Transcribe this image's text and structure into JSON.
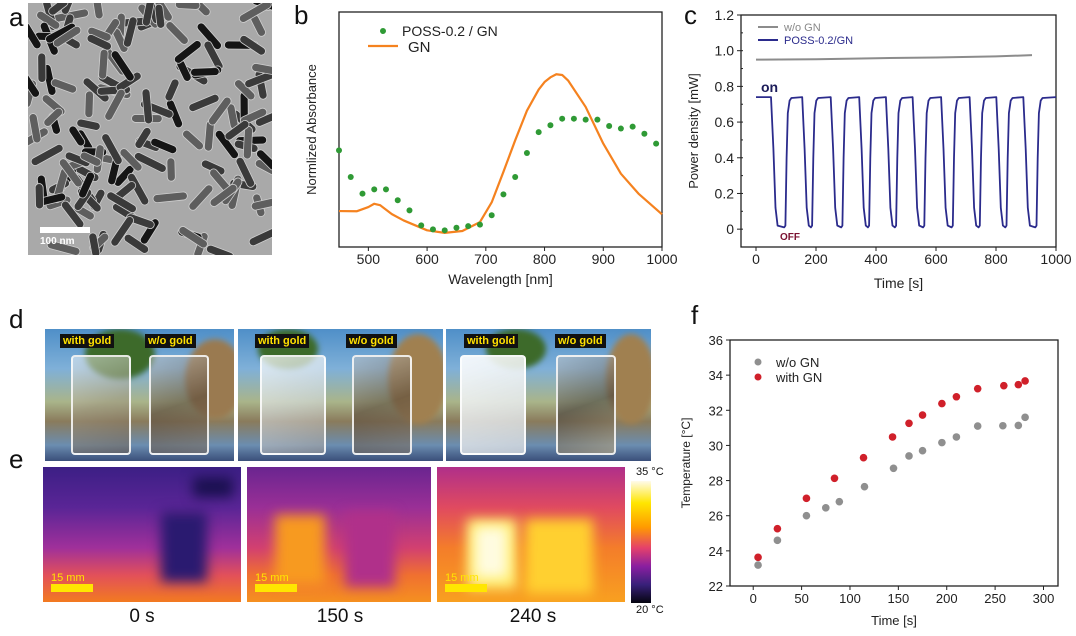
{
  "panel_labels": {
    "a": "a",
    "b": "b",
    "c": "c",
    "d": "d",
    "e": "e",
    "f": "f"
  },
  "panel_a": {
    "scale_bar": "100 nm"
  },
  "panel_d": {
    "photos": [
      {
        "left_label": "with gold",
        "right_label": "w/o gold"
      },
      {
        "left_label": "with gold",
        "right_label": "w/o gold"
      },
      {
        "left_label": "with gold",
        "right_label": "w/o gold"
      }
    ]
  },
  "panel_e": {
    "scale_bar": "15 mm",
    "times": [
      "0 s",
      "150 s",
      "240 s"
    ],
    "colorbar_max": "35 °C",
    "colorbar_min": "20 °C",
    "colormap": "inferno-like (black-purple-magenta-orange-yellow-white)"
  },
  "chart_data": [
    {
      "panel": "b",
      "type": "line+scatter",
      "xlabel": "Wavelength [nm]",
      "ylabel": "Normlized Absorbance",
      "xlim": [
        450,
        1000
      ],
      "ylim": [
        0,
        1
      ],
      "y_ticks_shown": false,
      "x_ticks": [
        500,
        600,
        700,
        800,
        900,
        1000
      ],
      "grid": false,
      "legend": "top-left",
      "series": [
        {
          "name": "POSS-0.2 / GN",
          "kind": "scatter",
          "color": "#2f9a35",
          "x": [
            450,
            470,
            490,
            510,
            530,
            550,
            570,
            590,
            610,
            630,
            650,
            670,
            690,
            710,
            730,
            750,
            770,
            790,
            810,
            830,
            850,
            870,
            890,
            910,
            930,
            950,
            970,
            990
          ],
          "y": [
            0.411,
            0.298,
            0.227,
            0.245,
            0.245,
            0.199,
            0.156,
            0.092,
            0.075,
            0.071,
            0.082,
            0.089,
            0.095,
            0.135,
            0.224,
            0.298,
            0.4,
            0.489,
            0.518,
            0.546,
            0.546,
            0.542,
            0.542,
            0.515,
            0.504,
            0.512,
            0.482,
            0.44
          ]
        },
        {
          "name": "GN",
          "kind": "line",
          "color": "#f5821f",
          "x": [
            450,
            480,
            500,
            510,
            520,
            540,
            560,
            600,
            630,
            660,
            690,
            710,
            730,
            750,
            770,
            790,
            800,
            810,
            820,
            830,
            840,
            870,
            900,
            930,
            960,
            1000
          ],
          "y": [
            0.153,
            0.152,
            0.17,
            0.184,
            0.178,
            0.14,
            0.113,
            0.071,
            0.06,
            0.068,
            0.106,
            0.19,
            0.32,
            0.454,
            0.58,
            0.67,
            0.702,
            0.722,
            0.735,
            0.732,
            0.709,
            0.596,
            0.44,
            0.312,
            0.227,
            0.139
          ]
        }
      ]
    },
    {
      "panel": "c",
      "type": "line",
      "xlabel": "Time [s]",
      "ylabel": "Power density [mW]",
      "xlim": [
        -50,
        1000
      ],
      "ylim": [
        -0.1,
        1.2
      ],
      "x_ticks": [
        0,
        200,
        400,
        600,
        800,
        1000
      ],
      "y_ticks": [
        0,
        0.2,
        0.4,
        0.6,
        0.8,
        1.0,
        1.2
      ],
      "y_tick_labels": [
        "0",
        "0.2",
        "0.4",
        "0.6",
        "0.8",
        "1.0",
        "1.2"
      ],
      "grid": false,
      "legend": "top-left",
      "annotations": [
        {
          "text": "on",
          "color": "#1c1c5a"
        },
        {
          "text": "OFF",
          "color": "#7a1030"
        }
      ],
      "series": [
        {
          "name": "w/o GN",
          "color": "#8c8c8c",
          "points": [
            [
              0,
              0.95
            ],
            [
              200,
              0.952
            ],
            [
              400,
              0.958
            ],
            [
              600,
              0.962
            ],
            [
              800,
              0.968
            ],
            [
              920,
              0.975
            ]
          ]
        },
        {
          "name": "POSS-0.2/GN",
          "color": "#2b2b8c",
          "points": [
            [
              0,
              0.74
            ],
            [
              50,
              0.74
            ],
            [
              58,
              0.45
            ],
            [
              65,
              0.12
            ],
            [
              72,
              0.02
            ],
            [
              94,
              0.01
            ],
            [
              98,
              0.02
            ],
            [
              102,
              0.4
            ],
            [
              106,
              0.65
            ],
            [
              112,
              0.72
            ],
            [
              118,
              0.735
            ],
            [
              154,
              0.74
            ],
            [
              162,
              0.45
            ],
            [
              169,
              0.12
            ],
            [
              176,
              0.02
            ],
            [
              183,
              0.01
            ],
            [
              187,
              0.02
            ],
            [
              191,
              0.4
            ],
            [
              195,
              0.65
            ],
            [
              201,
              0.72
            ],
            [
              207,
              0.735
            ],
            [
              249,
              0.74
            ],
            [
              257,
              0.45
            ],
            [
              264,
              0.12
            ],
            [
              271,
              0.02
            ],
            [
              284,
              0.01
            ],
            [
              288,
              0.02
            ],
            [
              292,
              0.4
            ],
            [
              296,
              0.65
            ],
            [
              302,
              0.72
            ],
            [
              308,
              0.735
            ],
            [
              344,
              0.74
            ],
            [
              352,
              0.45
            ],
            [
              359,
              0.12
            ],
            [
              366,
              0.02
            ],
            [
              373,
              0.01
            ],
            [
              377,
              0.02
            ],
            [
              381,
              0.4
            ],
            [
              385,
              0.65
            ],
            [
              391,
              0.72
            ],
            [
              397,
              0.735
            ],
            [
              433,
              0.74
            ],
            [
              441,
              0.45
            ],
            [
              448,
              0.12
            ],
            [
              455,
              0.02
            ],
            [
              463,
              0.01
            ],
            [
              467,
              0.02
            ],
            [
              471,
              0.4
            ],
            [
              475,
              0.65
            ],
            [
              481,
              0.72
            ],
            [
              487,
              0.735
            ],
            [
              522,
              0.74
            ],
            [
              530,
              0.45
            ],
            [
              537,
              0.12
            ],
            [
              544,
              0.02
            ],
            [
              557,
              0.01
            ],
            [
              561,
              0.02
            ],
            [
              565,
              0.4
            ],
            [
              569,
              0.65
            ],
            [
              575,
              0.72
            ],
            [
              581,
              0.735
            ],
            [
              617,
              0.74
            ],
            [
              625,
              0.45
            ],
            [
              632,
              0.12
            ],
            [
              639,
              0.02
            ],
            [
              652,
              0.01
            ],
            [
              656,
              0.02
            ],
            [
              660,
              0.4
            ],
            [
              664,
              0.65
            ],
            [
              670,
              0.72
            ],
            [
              676,
              0.735
            ],
            [
              712,
              0.74
            ],
            [
              720,
              0.45
            ],
            [
              727,
              0.12
            ],
            [
              734,
              0.02
            ],
            [
              742,
              0.01
            ],
            [
              746,
              0.02
            ],
            [
              750,
              0.4
            ],
            [
              754,
              0.65
            ],
            [
              760,
              0.72
            ],
            [
              766,
              0.735
            ],
            [
              801,
              0.74
            ],
            [
              809,
              0.45
            ],
            [
              816,
              0.12
            ],
            [
              823,
              0.02
            ],
            [
              831,
              0.01
            ],
            [
              835,
              0.02
            ],
            [
              839,
              0.4
            ],
            [
              843,
              0.65
            ],
            [
              849,
              0.72
            ],
            [
              855,
              0.735
            ],
            [
              891,
              0.74
            ],
            [
              899,
              0.45
            ],
            [
              906,
              0.12
            ],
            [
              913,
              0.02
            ],
            [
              931,
              0.01
            ],
            [
              935,
              0.02
            ],
            [
              939,
              0.4
            ],
            [
              943,
              0.65
            ],
            [
              949,
              0.72
            ],
            [
              955,
              0.735
            ],
            [
              1000,
              0.74
            ]
          ]
        }
      ]
    },
    {
      "panel": "f",
      "type": "scatter",
      "xlabel": "Time [s]",
      "ylabel": "Temperature [°C]",
      "xlim": [
        -24,
        315
      ],
      "ylim": [
        22,
        36
      ],
      "x_ticks": [
        0,
        50,
        100,
        150,
        200,
        250,
        300
      ],
      "y_ticks": [
        22,
        24,
        26,
        28,
        30,
        32,
        34,
        36
      ],
      "grid": false,
      "legend": "top-left",
      "series": [
        {
          "name": "w/o GN",
          "color": "#8f8f8f",
          "x": [
            5,
            25,
            55,
            75,
            89,
            115,
            145,
            161,
            175,
            195,
            210,
            232,
            258,
            274,
            281
          ],
          "y": [
            23.19,
            24.6,
            26.0,
            26.45,
            26.8,
            27.65,
            28.7,
            29.4,
            29.7,
            30.16,
            30.48,
            31.1,
            31.12,
            31.14,
            31.6
          ]
        },
        {
          "name": "with GN",
          "color": "#d0202a",
          "x": [
            5,
            25,
            55,
            84,
            114,
            144,
            161,
            175,
            195,
            210,
            232,
            259,
            274,
            281
          ],
          "y": [
            23.63,
            25.26,
            26.99,
            28.13,
            29.3,
            30.48,
            31.26,
            31.73,
            32.38,
            32.77,
            33.23,
            33.4,
            33.46,
            33.67
          ]
        }
      ]
    }
  ]
}
